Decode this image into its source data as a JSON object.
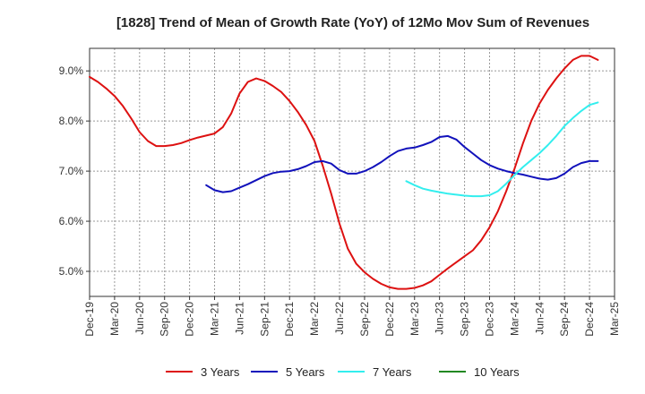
{
  "chart_data": {
    "type": "line",
    "title": "[1828]  Trend of Mean of Growth Rate (YoY) of 12Mo Mov Sum of Revenues",
    "xlabel": "",
    "ylabel": "",
    "ylim": [
      4.5,
      9.45
    ],
    "yticks": [
      {
        "value": 5.0,
        "label": "5.0%"
      },
      {
        "value": 6.0,
        "label": "6.0%"
      },
      {
        "value": 7.0,
        "label": "7.0%"
      },
      {
        "value": 8.0,
        "label": "8.0%"
      },
      {
        "value": 9.0,
        "label": "9.0%"
      }
    ],
    "xlim": [
      0,
      63
    ],
    "xticks": [
      {
        "value": 0,
        "label": "Dec-19"
      },
      {
        "value": 3,
        "label": "Mar-20"
      },
      {
        "value": 6,
        "label": "Jun-20"
      },
      {
        "value": 9,
        "label": "Sep-20"
      },
      {
        "value": 12,
        "label": "Dec-20"
      },
      {
        "value": 15,
        "label": "Mar-21"
      },
      {
        "value": 18,
        "label": "Jun-21"
      },
      {
        "value": 21,
        "label": "Sep-21"
      },
      {
        "value": 24,
        "label": "Dec-21"
      },
      {
        "value": 27,
        "label": "Mar-22"
      },
      {
        "value": 30,
        "label": "Jun-22"
      },
      {
        "value": 33,
        "label": "Sep-22"
      },
      {
        "value": 36,
        "label": "Dec-22"
      },
      {
        "value": 39,
        "label": "Mar-23"
      },
      {
        "value": 42,
        "label": "Jun-23"
      },
      {
        "value": 45,
        "label": "Sep-23"
      },
      {
        "value": 48,
        "label": "Dec-23"
      },
      {
        "value": 51,
        "label": "Mar-24"
      },
      {
        "value": 54,
        "label": "Jun-24"
      },
      {
        "value": 57,
        "label": "Sep-24"
      },
      {
        "value": 60,
        "label": "Dec-24"
      },
      {
        "value": 63,
        "label": "Mar-25"
      }
    ],
    "series": [
      {
        "name": "3 Years",
        "color": "#dd1111",
        "start": 0,
        "values": [
          8.88,
          8.78,
          8.65,
          8.5,
          8.3,
          8.05,
          7.78,
          7.6,
          7.5,
          7.5,
          7.52,
          7.56,
          7.62,
          7.67,
          7.71,
          7.75,
          7.88,
          8.15,
          8.55,
          8.78,
          8.85,
          8.8,
          8.7,
          8.58,
          8.4,
          8.18,
          7.92,
          7.6,
          7.1,
          6.55,
          5.95,
          5.45,
          5.15,
          4.98,
          4.85,
          4.75,
          4.68,
          4.65,
          4.65,
          4.67,
          4.72,
          4.8,
          4.93,
          5.06,
          5.18,
          5.3,
          5.42,
          5.62,
          5.88,
          6.2,
          6.6,
          7.05,
          7.55,
          8.0,
          8.35,
          8.62,
          8.85,
          9.05,
          9.22,
          9.3,
          9.3,
          9.22
        ]
      },
      {
        "name": "5 Years",
        "color": "#1111bb",
        "start": 14,
        "values": [
          6.72,
          6.62,
          6.58,
          6.6,
          6.67,
          6.74,
          6.82,
          6.9,
          6.96,
          6.99,
          7.0,
          7.04,
          7.1,
          7.18,
          7.2,
          7.15,
          7.02,
          6.95,
          6.95,
          7.0,
          7.08,
          7.18,
          7.3,
          7.4,
          7.45,
          7.47,
          7.52,
          7.58,
          7.68,
          7.7,
          7.63,
          7.48,
          7.35,
          7.22,
          7.12,
          7.05,
          7.0,
          6.96,
          6.93,
          6.89,
          6.85,
          6.83,
          6.86,
          6.95,
          7.08,
          7.16,
          7.2,
          7.2
        ]
      },
      {
        "name": "7 Years",
        "color": "#33eeee",
        "start": 38,
        "values": [
          6.8,
          6.72,
          6.65,
          6.61,
          6.58,
          6.55,
          6.53,
          6.51,
          6.5,
          6.5,
          6.52,
          6.6,
          6.75,
          6.92,
          7.08,
          7.22,
          7.36,
          7.52,
          7.7,
          7.9,
          8.06,
          8.2,
          8.32,
          8.37
        ]
      },
      {
        "name": "10 Years",
        "color": "#228822",
        "start": 0,
        "values": []
      }
    ]
  }
}
